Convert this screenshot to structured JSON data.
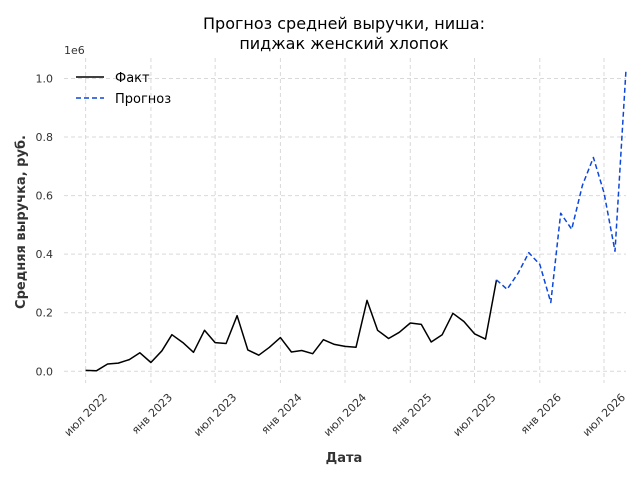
{
  "chart_data": {
    "type": "line",
    "title_line1": "Прогноз средней выручки, ниша:",
    "title_line2": "пиджак женский хлопок",
    "xlabel": "Дата",
    "ylabel": "Средняя выручка, руб.",
    "y_multiplier": "1e6",
    "ylim": [
      -0.04,
      1.07
    ],
    "xlim": [
      "2022-05-01",
      "2026-09-01"
    ],
    "x_ticks": [
      {
        "date": "2022-07-01",
        "label": "июл 2022"
      },
      {
        "date": "2023-01-01",
        "label": "янв 2023"
      },
      {
        "date": "2023-07-01",
        "label": "июл 2023"
      },
      {
        "date": "2024-01-01",
        "label": "янв 2024"
      },
      {
        "date": "2024-07-01",
        "label": "июл 2024"
      },
      {
        "date": "2025-01-01",
        "label": "янв 2025"
      },
      {
        "date": "2025-07-01",
        "label": "июл 2025"
      },
      {
        "date": "2026-01-01",
        "label": "янв 2026"
      },
      {
        "date": "2026-07-01",
        "label": "июл 2026"
      }
    ],
    "y_ticks": [
      {
        "value": 0.0,
        "label": "0.0"
      },
      {
        "value": 0.2,
        "label": "0.2"
      },
      {
        "value": 0.4,
        "label": "0.4"
      },
      {
        "value": 0.6,
        "label": "0.6"
      },
      {
        "value": 0.8,
        "label": "0.8"
      },
      {
        "value": 1.0,
        "label": "1.0"
      }
    ],
    "grid": true,
    "legend_position": "top-left",
    "series": [
      {
        "name": "Факт",
        "style": "solid",
        "color": "#000000",
        "points": [
          {
            "x": "2022-07-01",
            "y": 0.003
          },
          {
            "x": "2022-08-01",
            "y": 0.002
          },
          {
            "x": "2022-09-01",
            "y": 0.025
          },
          {
            "x": "2022-10-01",
            "y": 0.028
          },
          {
            "x": "2022-11-01",
            "y": 0.04
          },
          {
            "x": "2022-12-01",
            "y": 0.063
          },
          {
            "x": "2023-01-01",
            "y": 0.03
          },
          {
            "x": "2023-02-01",
            "y": 0.07
          },
          {
            "x": "2023-03-01",
            "y": 0.125
          },
          {
            "x": "2023-04-01",
            "y": 0.098
          },
          {
            "x": "2023-05-01",
            "y": 0.065
          },
          {
            "x": "2023-06-01",
            "y": 0.14
          },
          {
            "x": "2023-07-01",
            "y": 0.098
          },
          {
            "x": "2023-08-01",
            "y": 0.095
          },
          {
            "x": "2023-09-01",
            "y": 0.19
          },
          {
            "x": "2023-10-01",
            "y": 0.073
          },
          {
            "x": "2023-11-01",
            "y": 0.055
          },
          {
            "x": "2023-12-01",
            "y": 0.082
          },
          {
            "x": "2024-01-01",
            "y": 0.115
          },
          {
            "x": "2024-02-01",
            "y": 0.066
          },
          {
            "x": "2024-03-01",
            "y": 0.071
          },
          {
            "x": "2024-04-01",
            "y": 0.06
          },
          {
            "x": "2024-05-01",
            "y": 0.108
          },
          {
            "x": "2024-06-01",
            "y": 0.092
          },
          {
            "x": "2024-07-01",
            "y": 0.085
          },
          {
            "x": "2024-08-01",
            "y": 0.082
          },
          {
            "x": "2024-09-01",
            "y": 0.242
          },
          {
            "x": "2024-10-01",
            "y": 0.14
          },
          {
            "x": "2024-11-01",
            "y": 0.112
          },
          {
            "x": "2024-12-01",
            "y": 0.133
          },
          {
            "x": "2025-01-01",
            "y": 0.165
          },
          {
            "x": "2025-02-01",
            "y": 0.16
          },
          {
            "x": "2025-03-01",
            "y": 0.1
          },
          {
            "x": "2025-04-01",
            "y": 0.125
          },
          {
            "x": "2025-05-01",
            "y": 0.198
          },
          {
            "x": "2025-06-01",
            "y": 0.17
          },
          {
            "x": "2025-07-01",
            "y": 0.128
          },
          {
            "x": "2025-08-01",
            "y": 0.11
          },
          {
            "x": "2025-09-01",
            "y": 0.312
          }
        ]
      },
      {
        "name": "Прогноз",
        "style": "dashed",
        "color": "#0d47d9",
        "points": [
          {
            "x": "2025-09-01",
            "y": 0.312
          },
          {
            "x": "2025-10-01",
            "y": 0.28
          },
          {
            "x": "2025-11-01",
            "y": 0.335
          },
          {
            "x": "2025-12-01",
            "y": 0.405
          },
          {
            "x": "2026-01-01",
            "y": 0.365
          },
          {
            "x": "2026-02-01",
            "y": 0.235
          },
          {
            "x": "2026-03-01",
            "y": 0.54
          },
          {
            "x": "2026-04-01",
            "y": 0.485
          },
          {
            "x": "2026-05-01",
            "y": 0.635
          },
          {
            "x": "2026-06-01",
            "y": 0.73
          },
          {
            "x": "2026-07-01",
            "y": 0.61
          },
          {
            "x": "2026-08-01",
            "y": 0.41
          },
          {
            "x": "2026-09-01",
            "y": 1.03
          }
        ]
      }
    ]
  }
}
